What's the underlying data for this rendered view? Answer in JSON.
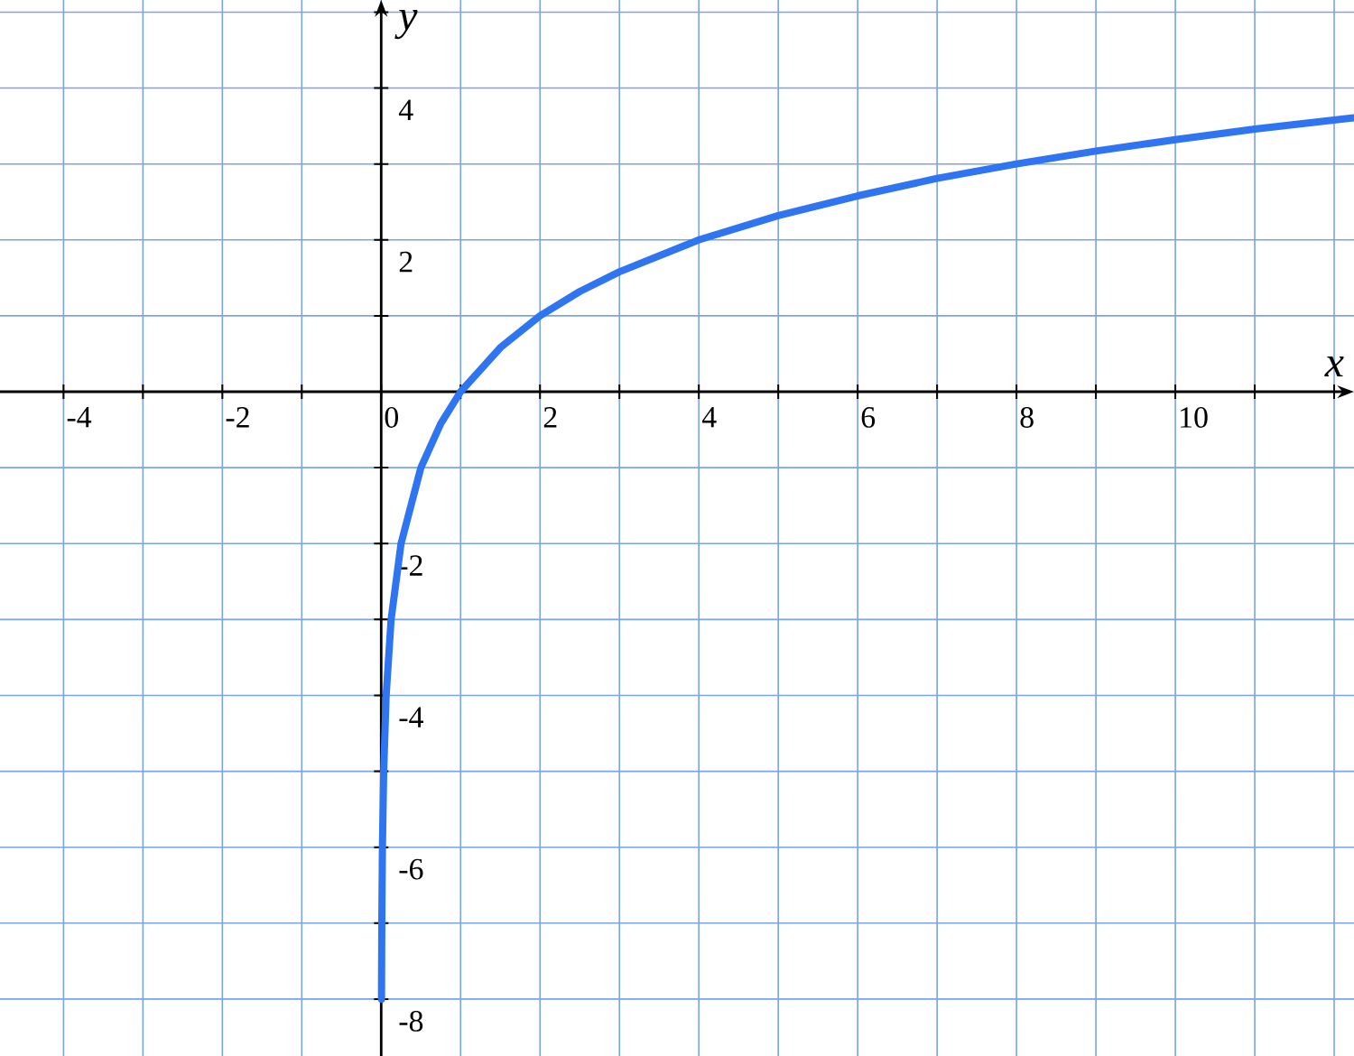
{
  "chart_data": {
    "type": "line",
    "xlabel": "x",
    "ylabel": "y",
    "x": [
      0.0039,
      0.0078,
      0.0156,
      0.0313,
      0.0625,
      0.125,
      0.25,
      0.5,
      0.75,
      1,
      1.5,
      2,
      2.5,
      3,
      4,
      5,
      6,
      7,
      8,
      9,
      10,
      11,
      12.25
    ],
    "series": [
      {
        "color": "#2f74f0",
        "values": [
          -8,
          -7,
          -6,
          -5,
          -4,
          -3,
          -2,
          -1,
          -0.42,
          0,
          0.58,
          1,
          1.32,
          1.58,
          2,
          2.32,
          2.58,
          2.81,
          3,
          3.17,
          3.32,
          3.46,
          3.61
        ]
      }
    ],
    "xlim": [
      -4.8,
      12.25
    ],
    "ylim": [
      -8.75,
      5.16
    ],
    "xticks": [
      -4,
      {
        "value": -3,
        "label": null
      },
      -2,
      {
        "value": -1,
        "label": null
      },
      0,
      {
        "value": 1,
        "label": null
      },
      2,
      {
        "value": 3,
        "label": null
      },
      4,
      {
        "value": 5,
        "label": null
      },
      6,
      {
        "value": 7,
        "label": null
      },
      8,
      {
        "value": 9,
        "label": null
      },
      10,
      {
        "value": 11,
        "label": null
      },
      {
        "value": 12,
        "label": null
      }
    ],
    "yticks": [
      {
        "value": 5,
        "label": null
      },
      4,
      {
        "value": 3,
        "label": null
      },
      2,
      {
        "value": 1,
        "label": null
      },
      {
        "value": -1,
        "label": null
      },
      -2,
      {
        "value": -3,
        "label": null
      },
      -4,
      {
        "value": -5,
        "label": null
      },
      -6,
      {
        "value": -7,
        "label": null
      },
      -8
    ],
    "grid": true
  }
}
